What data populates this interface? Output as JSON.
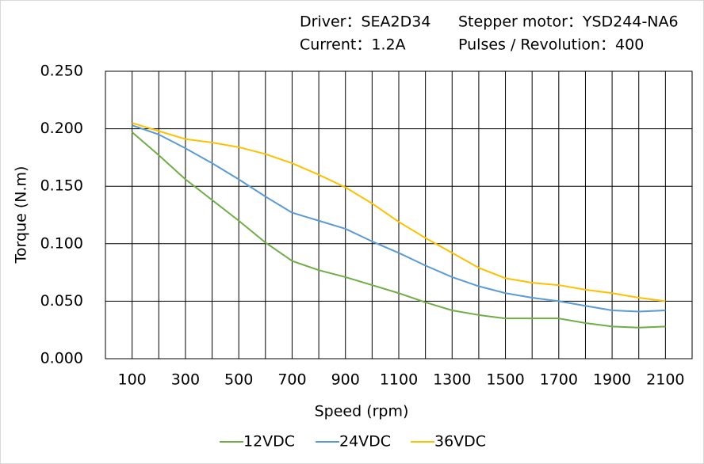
{
  "chart_data": {
    "type": "line",
    "annotations": [
      "Driver：SEA2D34",
      "Stepper motor：YSD244-NA6",
      "Current：1.2A",
      "Pulses / Revolution：400"
    ],
    "x_label": "Speed  (rpm)",
    "y_label": "Torque (N.m)",
    "x": [
      100,
      200,
      300,
      400,
      500,
      600,
      700,
      800,
      900,
      1000,
      1100,
      1200,
      1300,
      1400,
      1500,
      1600,
      1700,
      1800,
      1900,
      2000,
      2100
    ],
    "series": [
      {
        "name": "12VDC",
        "color": "#70ad47",
        "values": [
          0.197,
          0.177,
          0.156,
          0.138,
          0.12,
          0.101,
          0.085,
          0.077,
          0.071,
          0.064,
          0.057,
          0.049,
          0.042,
          0.038,
          0.035,
          0.035,
          0.035,
          0.031,
          0.028,
          0.027,
          0.028
        ]
      },
      {
        "name": "24VDC",
        "color": "#5b9bd5",
        "values": [
          0.203,
          0.195,
          0.183,
          0.17,
          0.156,
          0.141,
          0.127,
          0.12,
          0.113,
          0.102,
          0.092,
          0.081,
          0.071,
          0.063,
          0.057,
          0.053,
          0.05,
          0.046,
          0.042,
          0.041,
          0.042
        ]
      },
      {
        "name": "36VDC",
        "color": "#ffc000",
        "values": [
          0.205,
          0.198,
          0.191,
          0.188,
          0.184,
          0.178,
          0.17,
          0.16,
          0.149,
          0.135,
          0.119,
          0.105,
          0.092,
          0.079,
          0.07,
          0.066,
          0.064,
          0.06,
          0.057,
          0.053,
          0.05
        ]
      }
    ],
    "xlim": [
      0,
      2200
    ],
    "xticks": [
      100,
      300,
      500,
      700,
      900,
      1100,
      1300,
      1500,
      1700,
      1900,
      2100
    ],
    "x_minor_ticks": [
      200,
      400,
      600,
      800,
      1000,
      1200,
      1400,
      1600,
      1800,
      2000
    ],
    "ylim": [
      0,
      0.25
    ],
    "yticks": [
      {
        "value": 0,
        "label": "0.000"
      },
      {
        "value": 0.05,
        "label": "0.050"
      },
      {
        "value": 0.1,
        "label": "0.100"
      },
      {
        "value": 0.15,
        "label": "0.150"
      },
      {
        "value": 0.2,
        "label": "0.200"
      },
      {
        "value": 0.25,
        "label": "0.250"
      }
    ],
    "grid": true,
    "legend": "bottom"
  }
}
